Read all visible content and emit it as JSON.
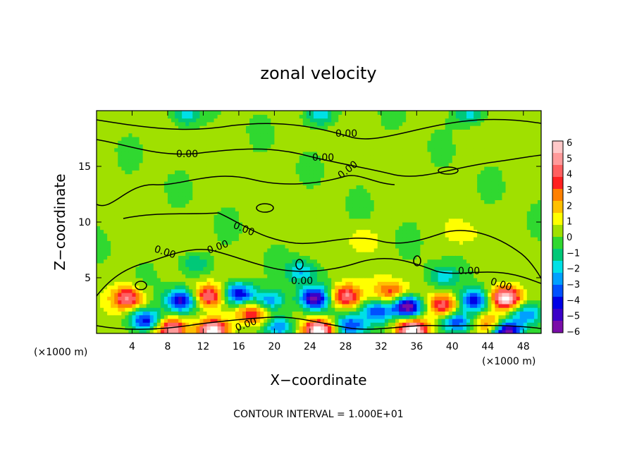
{
  "chart_data": {
    "type": "heatmap",
    "title": "zonal velocity",
    "xlabel": "X−coordinate",
    "ylabel": "Z−coordinate",
    "x_unit_left": "(×1000 m)",
    "x_unit_right": "(×1000 m)",
    "xlim": [
      0,
      50
    ],
    "ylim": [
      0,
      20
    ],
    "xticks": [
      4,
      8,
      12,
      16,
      20,
      24,
      28,
      32,
      36,
      40,
      44,
      48
    ],
    "yticks": [
      5,
      10,
      15
    ],
    "colorbar": {
      "ticks": [
        6,
        5,
        4,
        3,
        2,
        1,
        0,
        "−1",
        "−2",
        "−3",
        "−4",
        "−5",
        "−6"
      ],
      "range": [
        -6,
        6
      ],
      "colors": [
        "#7a0da8",
        "#3a00c8",
        "#0000e6",
        "#0050ff",
        "#00a0ff",
        "#00e0e6",
        "#00c878",
        "#30d830",
        "#a0e000",
        "#ffff00",
        "#ffc000",
        "#ff8000",
        "#ff2020",
        "#ff6060",
        "#ff9a9a",
        "#ffc8c8"
      ]
    },
    "contour_label": "0.00",
    "contour_interval_text": "CONTOUR INTERVAL = 1.000E+01",
    "anomalies": [
      {
        "x": 3.5,
        "z": 3.2,
        "v": 4.5
      },
      {
        "x": 5.5,
        "z": 1.2,
        "v": -4.5
      },
      {
        "x": 8.5,
        "z": 0.4,
        "v": 5
      },
      {
        "x": 9.5,
        "z": 3.0,
        "v": -5
      },
      {
        "x": 12.5,
        "z": 3.4,
        "v": 4.5
      },
      {
        "x": 13.0,
        "z": 0.3,
        "v": 6.5
      },
      {
        "x": 16.0,
        "z": 3.6,
        "v": -5
      },
      {
        "x": 17.5,
        "z": 1.8,
        "v": 3.5
      },
      {
        "x": 19.5,
        "z": 3.0,
        "v": -3
      },
      {
        "x": 20.5,
        "z": 0.6,
        "v": -3.5
      },
      {
        "x": 24.5,
        "z": 3.2,
        "v": -5.5
      },
      {
        "x": 25.0,
        "z": 0.3,
        "v": 6.5
      },
      {
        "x": 28.0,
        "z": 3.4,
        "v": 4.5
      },
      {
        "x": 28.5,
        "z": 0.7,
        "v": -4
      },
      {
        "x": 31.5,
        "z": 2.0,
        "v": -3.5
      },
      {
        "x": 33.0,
        "z": 3.8,
        "v": 3
      },
      {
        "x": 35.0,
        "z": 2.4,
        "v": -6.5
      },
      {
        "x": 35.5,
        "z": 0.3,
        "v": 6.5
      },
      {
        "x": 39.0,
        "z": 2.6,
        "v": 4
      },
      {
        "x": 40.5,
        "z": 1.0,
        "v": -4
      },
      {
        "x": 42.5,
        "z": 3.0,
        "v": -4.5
      },
      {
        "x": 44.5,
        "z": 0.8,
        "v": 3.5
      },
      {
        "x": 46.0,
        "z": 3.2,
        "v": 6.5
      },
      {
        "x": 46.0,
        "z": 0.2,
        "v": -6.5
      },
      {
        "x": 48.5,
        "z": 1.8,
        "v": -3
      },
      {
        "x": 11.0,
        "z": 6.3,
        "v": -2
      },
      {
        "x": 23.0,
        "z": 5.6,
        "v": -2.5
      },
      {
        "x": 39.0,
        "z": 5.2,
        "v": -2
      },
      {
        "x": 25.0,
        "z": 19.7,
        "v": -2.5
      },
      {
        "x": 10.0,
        "z": 19.6,
        "v": -2.2
      },
      {
        "x": 42.0,
        "z": 19.7,
        "v": -2.2
      },
      {
        "x": 30.0,
        "z": 8.5,
        "v": 1.2
      },
      {
        "x": 41.0,
        "z": 9.0,
        "v": 1.0
      }
    ]
  }
}
